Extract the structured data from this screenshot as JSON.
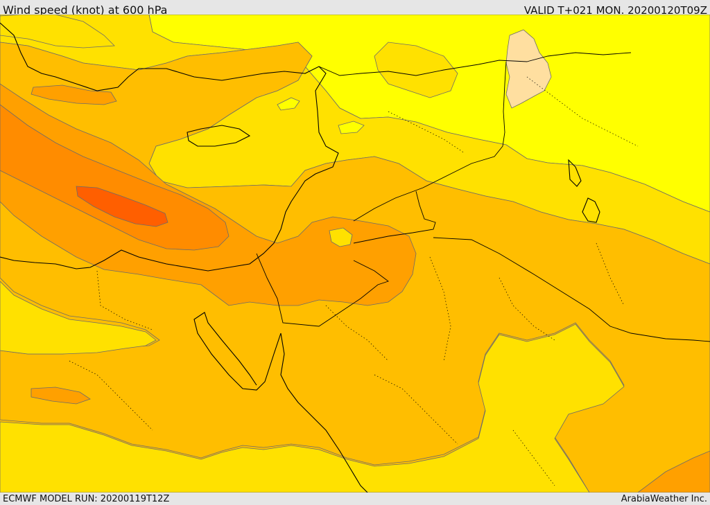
{
  "header": {
    "title": "Wind speed (knot) at 600 hPa",
    "valid": "VALID T+021 MON. 20200120T09Z"
  },
  "footer": {
    "model_run": "ECMWF MODEL RUN: 20200119T12Z",
    "credit": "ArabiaWeather Inc."
  },
  "colors": {
    "band_weak": "#ffff00",
    "band_low": "#ffe100",
    "band_mid": "#ffbe00",
    "band_high": "#ffa000",
    "band_strong": "#ff8c00",
    "band_core": "#ff5f00",
    "isolated_pale": "#ffdfa0",
    "coastline": "#000000",
    "contour": "#6b6b6b"
  }
}
